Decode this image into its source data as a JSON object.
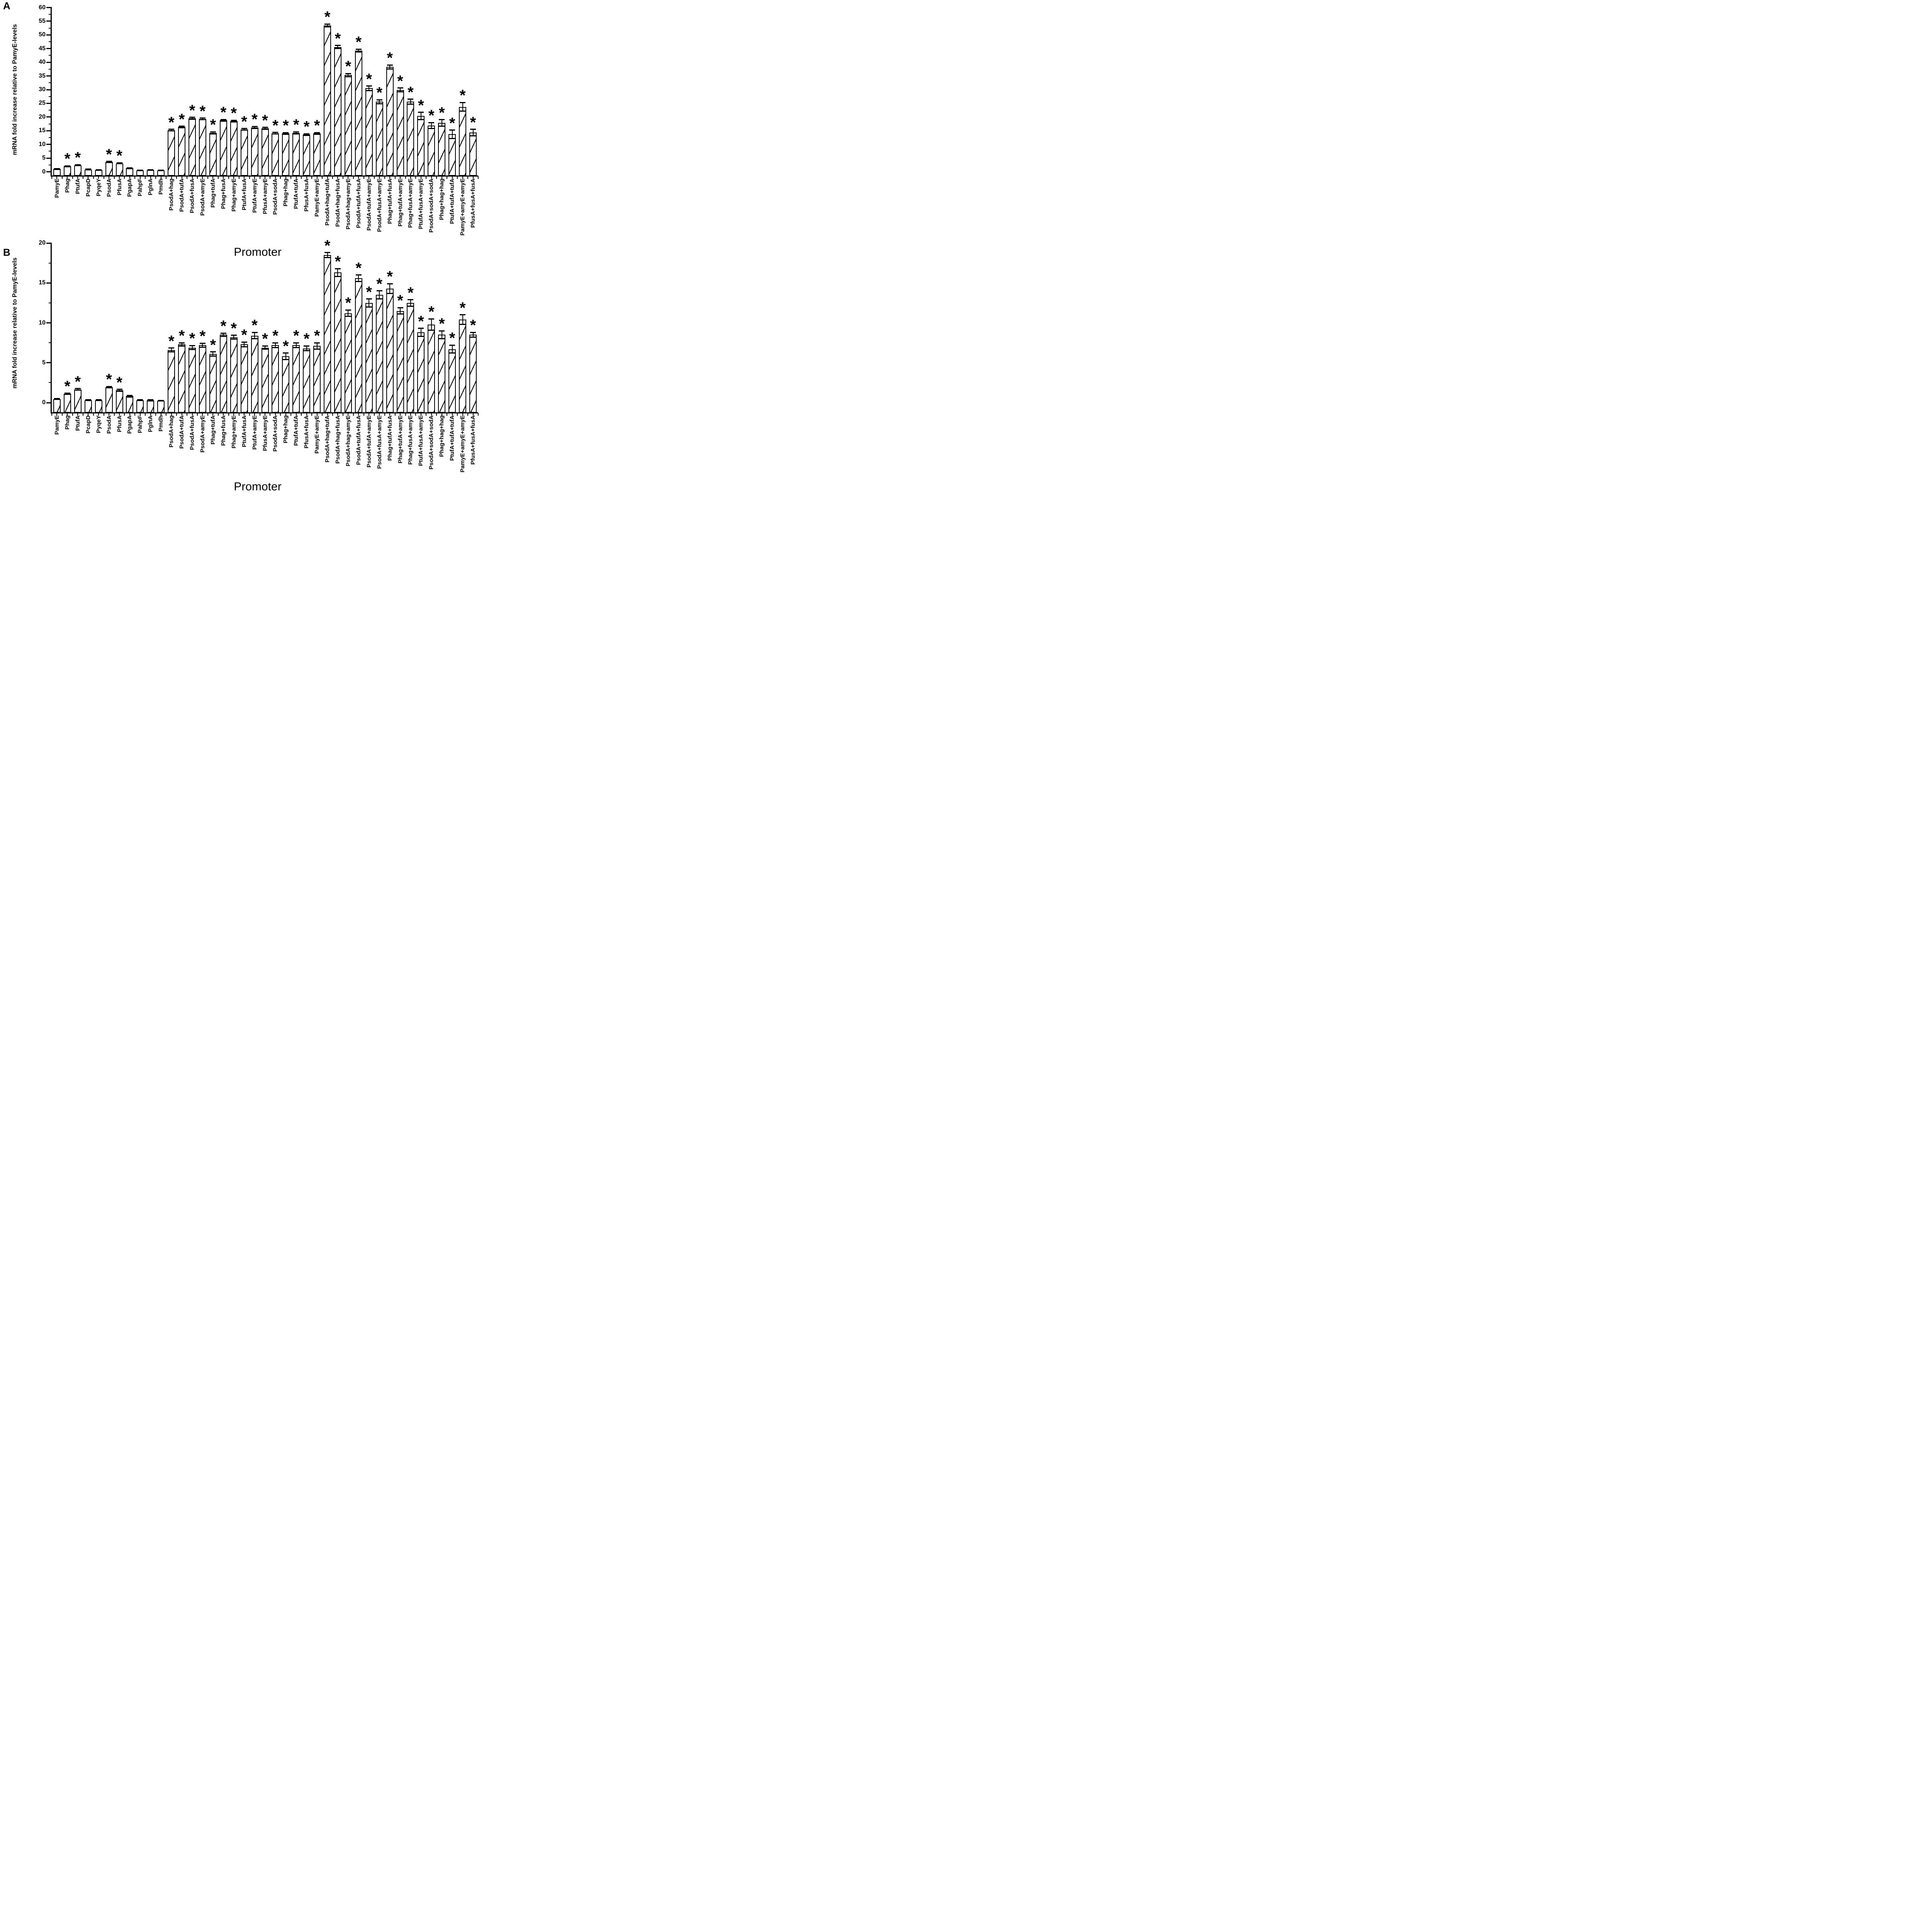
{
  "figure_title": "",
  "significance_marker": "*",
  "colors": {
    "foreground": "#000000",
    "background": "#ffffff"
  },
  "chart_data": [
    {
      "type": "bar",
      "panel_label": "A",
      "title": "",
      "xlabel": "Promoter",
      "ylabel": "mRNA fold increase relative to PamyE-levels",
      "ylim": [
        0,
        60
      ],
      "ytick_step": 5,
      "ytick_minor_step": 2.5,
      "grid": "off",
      "legend": "none",
      "bar_pattern": "diagonal-hatch",
      "categories": [
        "PamyE",
        "Phag",
        "PtufA",
        "PcapD",
        "PyqeY",
        "PsodA",
        "PfusA",
        "PgapA",
        "PahpF",
        "PglnA",
        "Pmdh",
        "PsodA+hag",
        "PsodA+tufA",
        "PsodA+fusA",
        "PsodA+amyE",
        "Phag+tufA",
        "Phag+fusA",
        "Phag+amyE",
        "PtufA+fusA",
        "PtufA+amyE",
        "PfusA+amyE",
        "PsodA+sodA",
        "Phag+hag",
        "PtufA+tufA",
        "PfusA+fusA",
        "PamyE+amyE",
        "PsodA+hag+tufA",
        "PsodA+hag+fusA",
        "PsodA+hag+amyE",
        "PsodA+tufA+fusA",
        "PsodA+tufA+amyE",
        "PsodA+fusA+amyE",
        "Phag+tufA+fusA",
        "Phag+tufA+amyE",
        "Phag+fusA+amyE",
        "PtufA+fusA+amyE",
        "PsodA+sodA+sodA",
        "Phag+hag+hag",
        "PtufA+tufA+tufA",
        "PamyE+amyE+amyE",
        "PfusA+fusA+fusA"
      ],
      "values": [
        1.0,
        2.0,
        2.4,
        0.8,
        0.6,
        3.6,
        3.1,
        1.3,
        0.5,
        0.6,
        0.5,
        15.2,
        16.4,
        19.5,
        19.3,
        14.2,
        18.8,
        18.5,
        15.5,
        16.2,
        15.9,
        14.1,
        14.0,
        14.2,
        13.6,
        14.0,
        53.5,
        45.6,
        35.3,
        44.3,
        30.5,
        25.6,
        38.3,
        29.9,
        25.6,
        20.4,
        16.9,
        17.8,
        13.7,
        23.7,
        14.3
      ],
      "errors": [
        0.1,
        0.15,
        0.2,
        0.12,
        0.1,
        0.2,
        0.2,
        0.15,
        0.1,
        0.1,
        0.1,
        0.3,
        0.25,
        0.35,
        0.3,
        0.35,
        0.3,
        0.3,
        0.3,
        0.35,
        0.3,
        0.3,
        0.3,
        0.35,
        0.3,
        0.3,
        0.5,
        0.5,
        0.6,
        0.5,
        0.8,
        0.7,
        0.7,
        0.7,
        0.9,
        1.3,
        1.1,
        1.2,
        1.5,
        1.6,
        1.2
      ],
      "significant": [
        false,
        true,
        true,
        false,
        false,
        true,
        true,
        false,
        false,
        false,
        false,
        true,
        true,
        true,
        true,
        true,
        true,
        true,
        true,
        true,
        true,
        true,
        true,
        true,
        true,
        true,
        true,
        true,
        true,
        true,
        true,
        true,
        true,
        true,
        true,
        true,
        true,
        true,
        true,
        true,
        true
      ]
    },
    {
      "type": "bar",
      "panel_label": "B",
      "title": "",
      "xlabel": "Promoter",
      "ylabel": "mRNA fold increase relative to PamyE-levels",
      "ylim": [
        0,
        20
      ],
      "ytick_step": 5,
      "ytick_minor_step": 2.5,
      "grid": "off",
      "legend": "none",
      "bar_pattern": "diagonal-hatch",
      "categories": [
        "PamyE",
        "Phag",
        "PtufA",
        "PcapD",
        "PyqeY",
        "PsodA",
        "PfusA",
        "PgapA",
        "PahpF",
        "PglnA",
        "Pmdh",
        "PsodA+hag",
        "PsodA+tufA",
        "PsodA+fusA",
        "PsodA+amyE",
        "Phag+tufA",
        "Phag+fusA",
        "Phag+amyE",
        "PtufA+fusA",
        "PtufA+amyE",
        "PfusA+amyE",
        "PsodA+sodA",
        "Phag+hag",
        "PtufA+tufA",
        "PfusA+fusA",
        "PamyE+amyE",
        "PsodA+hag+tufA",
        "PsodA+hag+fusA",
        "PsodA+hag+amyE",
        "PsodA+tufA+fusA",
        "PsodA+tufA+amyE",
        "PsodA+fusA+amyE",
        "Phag+tufA+fusA",
        "Phag+tufA+amyE",
        "Phag+fusA+amyE",
        "PtufA+fusA+amyE",
        "PsodA+sodA+sodA",
        "Phag+hag+hag",
        "PtufA+tufA+tufA",
        "PamyE+amyE+amyE",
        "PfusA+fusA+fusA"
      ],
      "values": [
        0.45,
        1.1,
        1.65,
        0.3,
        0.3,
        1.95,
        1.55,
        0.8,
        0.3,
        0.3,
        0.25,
        6.6,
        7.3,
        6.9,
        7.2,
        6.1,
        8.5,
        8.2,
        7.3,
        8.4,
        6.9,
        7.2,
        5.8,
        7.2,
        6.8,
        7.1,
        18.5,
        16.3,
        11.2,
        15.6,
        12.5,
        13.5,
        14.3,
        11.5,
        12.5,
        8.8,
        9.8,
        8.5,
        6.7,
        10.4,
        8.5
      ],
      "errors": [
        0.04,
        0.08,
        0.1,
        0.04,
        0.04,
        0.08,
        0.1,
        0.08,
        0.04,
        0.06,
        0.04,
        0.25,
        0.2,
        0.25,
        0.25,
        0.25,
        0.2,
        0.25,
        0.3,
        0.4,
        0.2,
        0.3,
        0.4,
        0.3,
        0.3,
        0.4,
        0.3,
        0.5,
        0.4,
        0.4,
        0.5,
        0.5,
        0.6,
        0.4,
        0.4,
        0.5,
        0.7,
        0.5,
        0.5,
        0.6,
        0.3
      ],
      "significant": [
        false,
        true,
        true,
        false,
        false,
        true,
        true,
        false,
        false,
        false,
        false,
        true,
        true,
        true,
        true,
        true,
        true,
        true,
        true,
        true,
        true,
        true,
        true,
        true,
        true,
        true,
        true,
        true,
        true,
        true,
        true,
        true,
        true,
        true,
        true,
        true,
        true,
        true,
        true,
        true,
        true
      ]
    }
  ]
}
